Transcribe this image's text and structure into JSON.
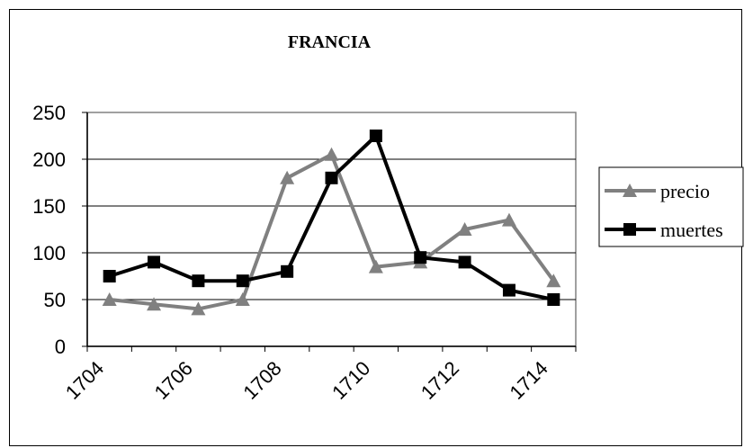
{
  "chart_data": {
    "type": "line",
    "title": "FRANCIA",
    "xlabel": "",
    "ylabel": "",
    "x": [
      1704,
      1705,
      1706,
      1707,
      1708,
      1709,
      1710,
      1711,
      1712,
      1713,
      1714
    ],
    "x_tick_labels": [
      "1704",
      "1706",
      "1708",
      "1710",
      "1712",
      "1714"
    ],
    "ylim": [
      0,
      250
    ],
    "y_ticks": [
      0,
      50,
      100,
      150,
      200,
      250
    ],
    "grid": "horizontal",
    "legend_position": "right",
    "series": [
      {
        "name": "precio",
        "color": "#808080",
        "marker": "triangle",
        "values": [
          50,
          45,
          40,
          50,
          180,
          205,
          85,
          90,
          125,
          135,
          70
        ]
      },
      {
        "name": "muertes",
        "color": "#000000",
        "marker": "square",
        "values": [
          75,
          90,
          70,
          70,
          80,
          180,
          225,
          95,
          90,
          60,
          50
        ]
      }
    ]
  }
}
